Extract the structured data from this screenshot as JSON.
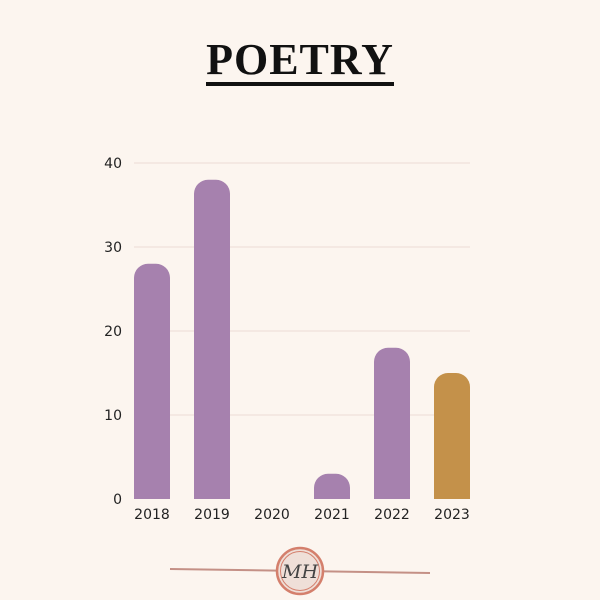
{
  "chart_data": {
    "type": "bar",
    "title": "POETRY",
    "categories": [
      "2018",
      "2019",
      "2020",
      "2021",
      "2022",
      "2023"
    ],
    "values": [
      28,
      38,
      0,
      3,
      18,
      15
    ],
    "yticks": [
      0,
      10,
      20,
      30,
      40
    ],
    "ylim": [
      0,
      40
    ],
    "grid": true,
    "colors": {
      "default": "#a681ae",
      "highlight": "#c4914a",
      "highlight_category": "2023"
    }
  },
  "logo": {
    "text": "MH",
    "ring_color": "#d47f6c",
    "line_color": "#c49086"
  }
}
